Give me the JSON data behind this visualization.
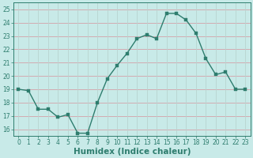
{
  "x": [
    0,
    1,
    2,
    3,
    4,
    5,
    6,
    7,
    8,
    9,
    10,
    11,
    12,
    13,
    14,
    15,
    16,
    17,
    18,
    19,
    20,
    21,
    22,
    23
  ],
  "y": [
    19.0,
    18.9,
    17.5,
    17.5,
    16.9,
    17.1,
    15.7,
    15.7,
    18.0,
    19.8,
    20.8,
    21.7,
    22.8,
    23.1,
    22.8,
    24.7,
    24.7,
    24.2,
    23.2,
    21.3,
    20.1,
    20.3,
    19.0,
    19.0
  ],
  "line_color": "#2e7d6e",
  "marker_color": "#2e7d6e",
  "bg_color": "#c8eae8",
  "grid_color_h": "#d4a0a8",
  "grid_color_v": "#b8d4d0",
  "xlabel": "Humidex (Indice chaleur)",
  "ylabel": "",
  "xlim": [
    -0.5,
    23.5
  ],
  "ylim": [
    15.5,
    25.5
  ],
  "yticks": [
    16,
    17,
    18,
    19,
    20,
    21,
    22,
    23,
    24,
    25
  ],
  "xticks": [
    0,
    1,
    2,
    3,
    4,
    5,
    6,
    7,
    8,
    9,
    10,
    11,
    12,
    13,
    14,
    15,
    16,
    17,
    18,
    19,
    20,
    21,
    22,
    23
  ],
  "tick_fontsize": 5.5,
  "xlabel_fontsize": 7.5,
  "marker_size": 2.2,
  "line_width": 1.0
}
